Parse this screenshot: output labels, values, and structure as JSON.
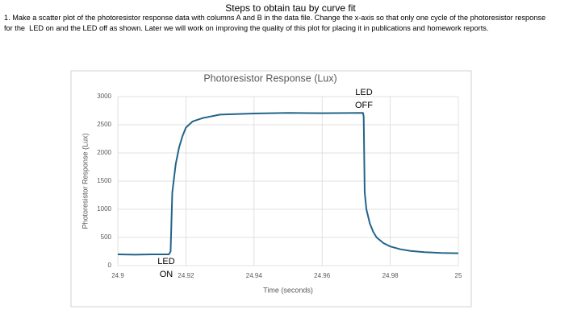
{
  "slide": {
    "title": "Steps to obtain tau by curve fit",
    "instructions": [
      "1. Make a scatter plot of the photoresistor response data with columns A and B in the data file. Change the x-axis so that only one cycle of the photoresistor response",
      "for the  LED on and the LED off as shown. Later we will work on improving the quality of this plot for placing it in publications and homework reports."
    ]
  },
  "chart_data": {
    "type": "line",
    "title": "Photoresistor Response (Lux)",
    "x_label": "Time (seconds)",
    "y_label": "Photoresistor Response (Lux)",
    "x": [
      24.9,
      24.905,
      24.91,
      24.915,
      24.9155,
      24.916,
      24.917,
      24.918,
      24.919,
      24.92,
      24.922,
      24.925,
      24.93,
      24.94,
      24.95,
      24.96,
      24.972,
      24.9722,
      24.9725,
      24.973,
      24.974,
      24.975,
      24.976,
      24.978,
      24.98,
      24.983,
      24.986,
      24.99,
      24.995,
      25
    ],
    "series": [
      {
        "name": "Photoresistor Response (Lux)",
        "color": "#23648a",
        "values": [
          200,
          195,
          200,
          200,
          250,
          1300,
          1800,
          2100,
          2300,
          2450,
          2560,
          2620,
          2680,
          2700,
          2710,
          2705,
          2710,
          2650,
          1300,
          1000,
          750,
          600,
          500,
          400,
          340,
          290,
          260,
          240,
          225,
          220
        ]
      }
    ],
    "xlim": [
      24.9,
      25
    ],
    "xticks": [
      24.9,
      24.92,
      24.94,
      24.96,
      24.98,
      25
    ],
    "ylim": [
      0,
      3000
    ],
    "yticks": [
      0,
      500,
      1000,
      1500,
      2000,
      2500,
      3000
    ],
    "grid": true,
    "annotations": [
      [
        "LED",
        "OFF"
      ],
      [
        "LED",
        "ON"
      ]
    ]
  }
}
